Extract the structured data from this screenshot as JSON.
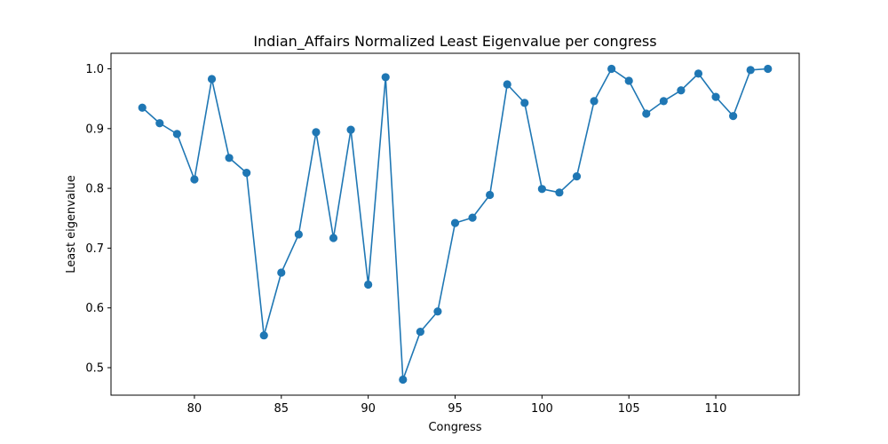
{
  "chart_data": {
    "type": "line",
    "title": "Indian_Affairs Normalized Least Eigenvalue per congress",
    "xlabel": "Congress",
    "ylabel": "Least eigenvalue",
    "xlim": [
      75.2,
      114.8
    ],
    "ylim": [
      0.454,
      1.026
    ],
    "x_ticks": [
      80,
      85,
      90,
      95,
      100,
      105,
      110
    ],
    "x_tick_labels": [
      "80",
      "85",
      "90",
      "95",
      "100",
      "105",
      "110"
    ],
    "y_ticks": [
      0.5,
      0.6,
      0.7,
      0.8,
      0.9,
      1.0
    ],
    "y_tick_labels": [
      "0.5",
      "0.6",
      "0.7",
      "0.8",
      "0.9",
      "1.0"
    ],
    "grid": false,
    "color": "#1f77b4",
    "marker": "circle",
    "x": [
      77,
      78,
      79,
      80,
      81,
      82,
      83,
      84,
      85,
      86,
      87,
      88,
      89,
      90,
      91,
      92,
      93,
      94,
      95,
      96,
      97,
      98,
      99,
      100,
      101,
      102,
      103,
      104,
      105,
      106,
      107,
      108,
      109,
      110,
      111,
      112,
      113
    ],
    "y": [
      0.935,
      0.909,
      0.891,
      0.815,
      0.983,
      0.851,
      0.826,
      0.554,
      0.659,
      0.723,
      0.894,
      0.717,
      0.898,
      0.639,
      0.986,
      0.48,
      0.56,
      0.594,
      0.742,
      0.751,
      0.789,
      0.974,
      0.943,
      0.799,
      0.793,
      0.82,
      0.946,
      1.0,
      0.98,
      0.925,
      0.946,
      0.964,
      0.992,
      0.953,
      0.921,
      0.998,
      1.0
    ]
  }
}
